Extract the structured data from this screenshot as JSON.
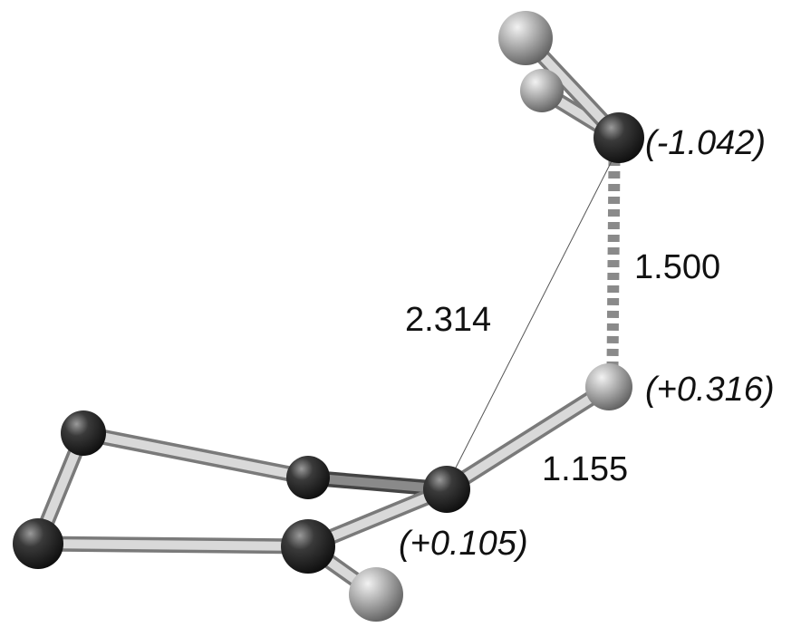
{
  "charges": [
    "(-1.042)",
    "(+0.316)",
    "(+0.105)"
  ],
  "distances": [
    "1.500",
    "2.314",
    "1.155"
  ]
}
